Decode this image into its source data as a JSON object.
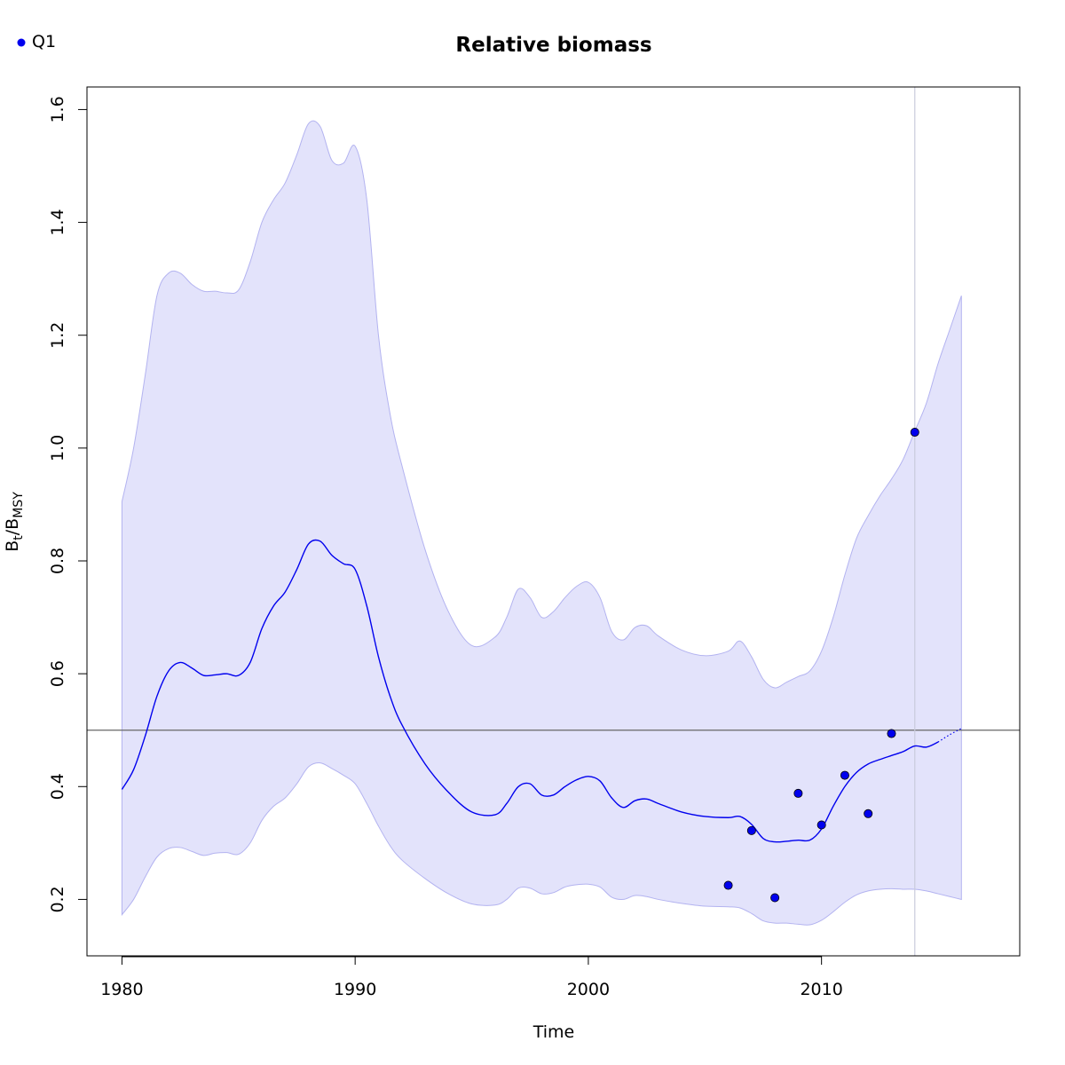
{
  "chart_data": {
    "type": "line",
    "title": "Relative biomass",
    "xlabel": "Time",
    "ylabel": {
      "base": "B",
      "sub1": "t",
      "slash": "/",
      "base2": "B",
      "sub2": "MSY"
    },
    "xlim": [
      1978.5,
      2018.5
    ],
    "ylim": [
      0.1,
      1.64
    ],
    "x_ticks": [
      1980,
      1990,
      2000,
      2010
    ],
    "y_ticks": [
      0.2,
      0.4,
      0.6,
      0.8,
      1.0,
      1.2,
      1.4,
      1.6
    ],
    "x_tick_labels": [
      "1980",
      "1990",
      "2000",
      "2010"
    ],
    "y_tick_labels": [
      "0.2",
      "0.4",
      "0.6",
      "0.8",
      "1.0",
      "1.2",
      "1.4",
      "1.6"
    ],
    "reference_line_y": 0.5,
    "vertical_line_x": 2014,
    "legend": {
      "position": "top-left",
      "entries": [
        {
          "label": "Q1",
          "color": "#0000ee"
        }
      ]
    },
    "colors": {
      "line": "#0000ee",
      "band_fill": "#e3e3fb",
      "band_edge": "#b3b3f0",
      "ref_line": "#666666",
      "vline": "#c9cbdc",
      "points": "#0000ee"
    },
    "series": [
      {
        "role": "estimate",
        "x": [
          1980,
          1980.5,
          1981,
          1981.5,
          1982,
          1982.5,
          1983,
          1983.5,
          1984,
          1984.5,
          1985,
          1985.5,
          1986,
          1986.5,
          1987,
          1987.5,
          1988,
          1988.5,
          1989,
          1989.5,
          1990,
          1990.5,
          1991,
          1991.5,
          1992,
          1993,
          1994,
          1995,
          1996,
          1996.5,
          1997,
          1997.5,
          1998,
          1998.5,
          1999,
          1999.5,
          2000,
          2000.5,
          2001,
          2001.5,
          2002,
          2002.5,
          2003,
          2004,
          2005,
          2006,
          2006.5,
          2007,
          2007.5,
          2008,
          2008.5,
          2009,
          2009.5,
          2010,
          2010.5,
          2011,
          2011.5,
          2012,
          2012.5,
          2013,
          2013.5,
          2014,
          2014.5,
          2015
        ],
        "y": [
          0.395,
          0.43,
          0.49,
          0.56,
          0.605,
          0.62,
          0.61,
          0.597,
          0.598,
          0.6,
          0.597,
          0.62,
          0.68,
          0.72,
          0.745,
          0.785,
          0.83,
          0.835,
          0.81,
          0.795,
          0.785,
          0.72,
          0.63,
          0.56,
          0.51,
          0.44,
          0.39,
          0.355,
          0.35,
          0.37,
          0.4,
          0.405,
          0.385,
          0.385,
          0.4,
          0.412,
          0.418,
          0.41,
          0.38,
          0.363,
          0.375,
          0.378,
          0.37,
          0.355,
          0.347,
          0.345,
          0.347,
          0.333,
          0.308,
          0.302,
          0.303,
          0.305,
          0.305,
          0.325,
          0.365,
          0.4,
          0.425,
          0.44,
          0.448,
          0.455,
          0.462,
          0.472,
          0.47,
          0.479
        ]
      },
      {
        "role": "prediction",
        "x": [
          2015,
          2015.5,
          2016
        ],
        "y": [
          0.479,
          0.492,
          0.503
        ]
      }
    ],
    "band": {
      "x": [
        1980,
        1980.5,
        1981,
        1981.5,
        1982,
        1982.5,
        1983,
        1983.5,
        1984,
        1984.5,
        1985,
        1985.5,
        1986,
        1986.5,
        1987,
        1987.5,
        1988,
        1988.5,
        1989,
        1989.5,
        1990,
        1990.5,
        1991,
        1991.5,
        1992,
        1993,
        1994,
        1995,
        1996,
        1996.5,
        1997,
        1997.5,
        1998,
        1998.5,
        1999,
        1999.5,
        2000,
        2000.5,
        2001,
        2001.5,
        2002,
        2002.5,
        2003,
        2004,
        2005,
        2006,
        2006.5,
        2007,
        2007.5,
        2008,
        2008.5,
        2009,
        2009.5,
        2010,
        2010.5,
        2011,
        2011.5,
        2012,
        2012.5,
        2013,
        2013.5,
        2014,
        2014.5,
        2015,
        2015.5,
        2016
      ],
      "upper": [
        0.905,
        1.0,
        1.13,
        1.27,
        1.31,
        1.31,
        1.29,
        1.278,
        1.278,
        1.275,
        1.28,
        1.33,
        1.4,
        1.44,
        1.47,
        1.52,
        1.575,
        1.57,
        1.51,
        1.505,
        1.535,
        1.44,
        1.2,
        1.06,
        0.97,
        0.82,
        0.71,
        0.65,
        0.665,
        0.7,
        0.75,
        0.735,
        0.7,
        0.71,
        0.735,
        0.755,
        0.762,
        0.735,
        0.675,
        0.66,
        0.682,
        0.685,
        0.667,
        0.642,
        0.632,
        0.64,
        0.658,
        0.63,
        0.59,
        0.575,
        0.585,
        0.595,
        0.605,
        0.64,
        0.7,
        0.775,
        0.84,
        0.88,
        0.915,
        0.945,
        0.98,
        1.03,
        1.08,
        1.15,
        1.21,
        1.27
      ],
      "lower": [
        0.173,
        0.2,
        0.24,
        0.275,
        0.29,
        0.292,
        0.285,
        0.278,
        0.282,
        0.283,
        0.28,
        0.3,
        0.34,
        0.365,
        0.38,
        0.405,
        0.435,
        0.442,
        0.432,
        0.42,
        0.405,
        0.37,
        0.33,
        0.295,
        0.27,
        0.237,
        0.21,
        0.192,
        0.19,
        0.2,
        0.22,
        0.22,
        0.21,
        0.212,
        0.222,
        0.226,
        0.227,
        0.222,
        0.204,
        0.2,
        0.207,
        0.205,
        0.2,
        0.193,
        0.188,
        0.187,
        0.185,
        0.175,
        0.162,
        0.158,
        0.158,
        0.156,
        0.155,
        0.163,
        0.178,
        0.195,
        0.208,
        0.215,
        0.218,
        0.219,
        0.218,
        0.218,
        0.215,
        0.21,
        0.205,
        0.2
      ]
    },
    "points": {
      "x": [
        2006,
        2007,
        2008,
        2009,
        2010,
        2011,
        2012,
        2013,
        2014
      ],
      "y": [
        0.225,
        0.322,
        0.203,
        0.388,
        0.332,
        0.42,
        0.352,
        0.494,
        1.028
      ]
    }
  }
}
